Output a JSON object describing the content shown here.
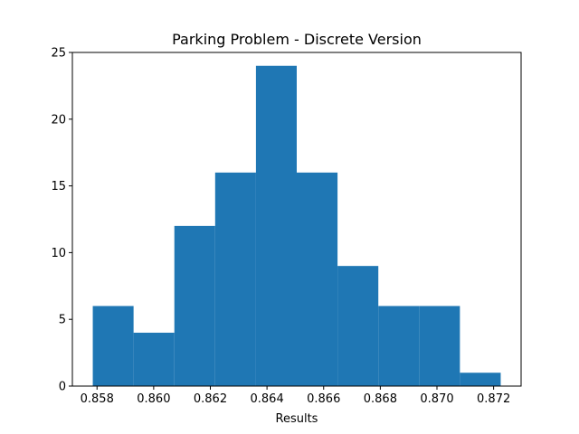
{
  "chart_data": {
    "type": "bar",
    "subtype": "histogram",
    "title": "Parking Problem - Discrete Version",
    "xlabel": "Results",
    "ylabel": "",
    "bin_edges": [
      0.85785,
      0.85929,
      0.86073,
      0.86217,
      0.86361,
      0.86505,
      0.86649,
      0.86793,
      0.86937,
      0.87081,
      0.87225
    ],
    "counts": [
      6,
      4,
      12,
      16,
      24,
      16,
      9,
      6,
      6,
      1
    ],
    "xlim": [
      0.85713,
      0.87297
    ],
    "ylim": [
      0,
      25
    ],
    "xticks": [
      0.858,
      0.86,
      0.862,
      0.864,
      0.866,
      0.868,
      0.87,
      0.872
    ],
    "xtick_labels": [
      "0.858",
      "0.860",
      "0.862",
      "0.864",
      "0.866",
      "0.868",
      "0.870",
      "0.872"
    ],
    "yticks": [
      0,
      5,
      10,
      15,
      20,
      25
    ],
    "ytick_labels": [
      "0",
      "5",
      "10",
      "15",
      "20",
      "25"
    ],
    "bar_color": "#1f77b4",
    "grid": false,
    "legend": "none"
  }
}
